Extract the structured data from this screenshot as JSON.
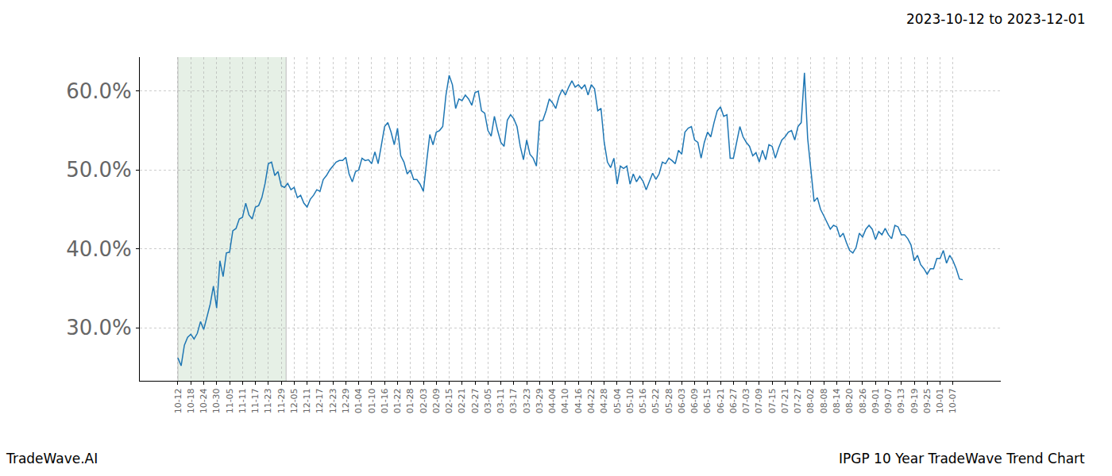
{
  "chart_data": {
    "type": "line",
    "title": "2023-10-12 to 2023-12-01",
    "footer_left": "TradeWave.AI",
    "footer_right": "IPGP 10 Year TradeWave Trend Chart",
    "color": "#1f77b4",
    "grid": true,
    "highlight": {
      "from": 0,
      "to": 33.5,
      "color": "#e6f0e6"
    },
    "xlim": [
      -11.8,
      254.8
    ],
    "ylim": [
      23.3,
      64.3
    ],
    "yticks": [
      {
        "value": 30,
        "label": "30.0%"
      },
      {
        "value": 40,
        "label": "40.0%"
      },
      {
        "value": 50,
        "label": "50.0%"
      },
      {
        "value": 60,
        "label": "60.0%"
      }
    ],
    "categories": [
      "10-12",
      null,
      null,
      null,
      "10-18",
      null,
      null,
      null,
      "10-24",
      null,
      null,
      null,
      "10-30",
      null,
      null,
      null,
      "11-05",
      null,
      null,
      null,
      "11-11",
      null,
      null,
      null,
      "11-17",
      null,
      null,
      null,
      "11-23",
      null,
      null,
      null,
      "11-29",
      null,
      null,
      null,
      "12-05",
      null,
      null,
      null,
      "12-11",
      null,
      null,
      null,
      "12-17",
      null,
      null,
      null,
      "12-23",
      null,
      null,
      null,
      "12-29",
      null,
      null,
      null,
      "01-04",
      null,
      null,
      null,
      "01-10",
      null,
      null,
      null,
      "01-16",
      null,
      null,
      null,
      "01-22",
      null,
      null,
      null,
      "01-28",
      null,
      null,
      null,
      "02-03",
      null,
      null,
      null,
      "02-09",
      null,
      null,
      null,
      "02-15",
      null,
      null,
      null,
      "02-21",
      null,
      null,
      null,
      "02-27",
      null,
      null,
      null,
      "03-05",
      null,
      null,
      null,
      "03-11",
      null,
      null,
      null,
      "03-17",
      null,
      null,
      null,
      "03-23",
      null,
      null,
      null,
      "03-29",
      null,
      null,
      null,
      "04-04",
      null,
      null,
      null,
      "04-10",
      null,
      null,
      null,
      "04-16",
      null,
      null,
      null,
      "04-22",
      null,
      null,
      null,
      "04-28",
      null,
      null,
      null,
      "05-04",
      null,
      null,
      null,
      "05-10",
      null,
      null,
      null,
      "05-16",
      null,
      null,
      null,
      "05-22",
      null,
      null,
      null,
      "05-28",
      null,
      null,
      null,
      "06-03",
      null,
      null,
      null,
      "06-09",
      null,
      null,
      null,
      "06-15",
      null,
      null,
      null,
      "06-21",
      null,
      null,
      null,
      "06-27",
      null,
      null,
      null,
      "07-03",
      null,
      null,
      null,
      "07-09",
      null,
      null,
      null,
      "07-15",
      null,
      null,
      null,
      "07-21",
      null,
      null,
      null,
      "07-27",
      null,
      null,
      null,
      "08-02",
      null,
      null,
      null,
      "08-08",
      null,
      null,
      null,
      "08-14",
      null,
      null,
      null,
      "08-20",
      null,
      null,
      null,
      "08-26",
      null,
      null,
      null,
      "09-01",
      null,
      null,
      null,
      "09-07",
      null,
      null,
      null,
      "09-13",
      null,
      null,
      null,
      "09-19",
      null,
      null,
      null,
      "09-25",
      null,
      null,
      null,
      "10-01",
      null,
      null,
      null,
      "10-07",
      null,
      null,
      null
    ],
    "values": [
      26.2,
      25.2,
      27.8,
      28.8,
      29.2,
      28.6,
      29.3,
      30.8,
      29.8,
      31.5,
      33.0,
      35.3,
      32.5,
      38.5,
      36.5,
      39.5,
      39.6,
      42.3,
      42.6,
      43.8,
      44.0,
      45.8,
      44.3,
      43.8,
      45.3,
      45.5,
      46.5,
      48.3,
      50.8,
      51.0,
      49.3,
      49.8,
      48.0,
      47.8,
      48.3,
      47.5,
      47.8,
      46.5,
      46.8,
      45.8,
      45.3,
      46.3,
      46.8,
      47.5,
      47.3,
      48.8,
      49.3,
      50.0,
      50.5,
      51.0,
      51.2,
      51.2,
      51.6,
      49.5,
      48.5,
      49.8,
      50.0,
      51.5,
      51.2,
      51.3,
      50.8,
      52.3,
      50.8,
      53.0,
      55.5,
      56.0,
      54.8,
      53.2,
      55.3,
      51.8,
      51.0,
      49.5,
      50.0,
      48.8,
      48.8,
      48.2,
      47.3,
      51.0,
      54.5,
      53.2,
      54.8,
      55.0,
      55.5,
      59.5,
      62.0,
      60.8,
      57.8,
      59.0,
      58.8,
      59.5,
      59.0,
      58.2,
      59.8,
      60.0,
      57.5,
      57.2,
      55.0,
      54.3,
      56.8,
      55.0,
      53.5,
      53.0,
      56.3,
      57.0,
      56.5,
      55.5,
      53.0,
      51.3,
      53.8,
      52.0,
      51.5,
      50.5,
      56.2,
      56.3,
      57.5,
      59.0,
      58.5,
      57.8,
      59.3,
      60.2,
      59.5,
      60.5,
      61.3,
      60.5,
      60.8,
      60.3,
      60.8,
      59.5,
      60.8,
      60.3,
      57.5,
      57.8,
      53.5,
      51.0,
      50.3,
      51.5,
      48.2,
      50.5,
      50.2,
      50.5,
      48.2,
      49.5,
      48.5,
      49.2,
      48.6,
      47.5,
      48.5,
      49.6,
      48.8,
      49.5,
      51.0,
      50.8,
      51.5,
      51.2,
      50.8,
      52.5,
      52.0,
      54.8,
      55.3,
      55.5,
      53.8,
      53.5,
      51.5,
      53.5,
      54.8,
      54.2,
      56.0,
      57.5,
      58.0,
      56.8,
      57.0,
      51.5,
      51.5,
      53.5,
      55.5,
      54.2,
      53.5,
      53.0,
      51.8,
      52.2,
      51.0,
      52.5,
      51.3,
      53.2,
      53.0,
      51.5,
      52.8,
      53.8,
      54.2,
      54.8,
      55.0,
      53.8,
      55.5,
      56.0,
      62.3,
      54.0,
      50.2,
      46.0,
      46.5,
      45.0,
      44.2,
      43.3,
      42.5,
      43.0,
      42.8,
      41.5,
      42.0,
      40.8,
      39.8,
      39.5,
      40.2,
      42.0,
      41.5,
      42.5,
      43.0,
      42.5,
      41.2,
      42.2,
      41.8,
      42.6,
      41.8,
      41.3,
      43.0,
      42.8,
      41.8,
      41.8,
      41.3,
      40.5,
      38.5,
      39.2,
      38.0,
      37.5,
      36.8,
      37.5,
      37.5,
      38.8,
      38.8,
      39.8,
      38.2,
      39.2,
      38.5,
      37.5,
      36.2,
      36.1
    ]
  }
}
